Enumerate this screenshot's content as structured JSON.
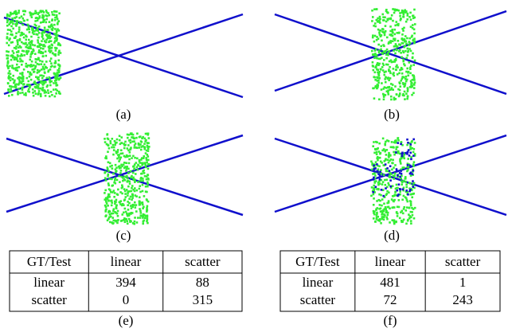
{
  "panels": [
    {
      "label": "(a)"
    },
    {
      "label": "(b)"
    },
    {
      "label": "(c)"
    },
    {
      "label": "(d)"
    }
  ],
  "tables": [
    {
      "label": "(e)",
      "header": [
        "GT/Test",
        "linear",
        "scatter"
      ],
      "rows": [
        [
          "linear",
          394,
          88
        ],
        [
          "scatter",
          0,
          315
        ]
      ]
    },
    {
      "label": "(f)",
      "header": [
        "GT/Test",
        "linear",
        "scatter"
      ],
      "rows": [
        [
          "linear",
          481,
          1
        ],
        [
          "scatter",
          72,
          243
        ]
      ]
    }
  ]
}
